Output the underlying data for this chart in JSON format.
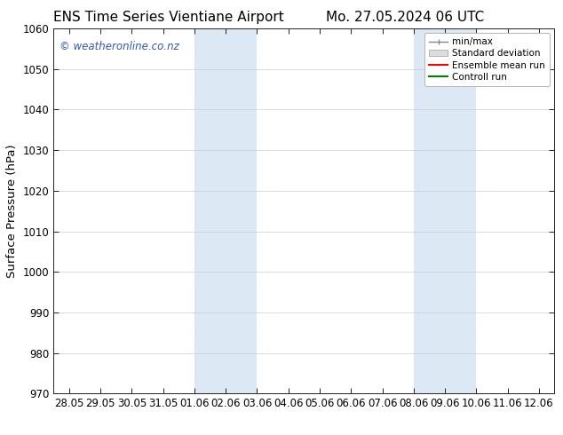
{
  "title_left": "ENS Time Series Vientiane Airport",
  "title_right": "Mo. 27.05.2024 06 UTC",
  "ylabel": "Surface Pressure (hPa)",
  "ylim": [
    970,
    1060
  ],
  "yticks": [
    970,
    980,
    990,
    1000,
    1010,
    1020,
    1030,
    1040,
    1050,
    1060
  ],
  "xtick_labels": [
    "28.05",
    "29.05",
    "30.05",
    "31.05",
    "01.06",
    "02.06",
    "03.06",
    "04.06",
    "05.06",
    "06.06",
    "07.06",
    "08.06",
    "09.06",
    "10.06",
    "11.06",
    "12.06"
  ],
  "xtick_positions": [
    0,
    1,
    2,
    3,
    4,
    5,
    6,
    7,
    8,
    9,
    10,
    11,
    12,
    13,
    14,
    15
  ],
  "xlim": [
    -0.5,
    15.5
  ],
  "shaded_regions": [
    {
      "x_start": 4,
      "x_end": 6,
      "color": "#dce9f5"
    },
    {
      "x_start": 11,
      "x_end": 13,
      "color": "#dce9f5"
    }
  ],
  "watermark_text": "© weatheronline.co.nz",
  "watermark_color": "#3355bb",
  "background_color": "#ffffff",
  "plot_bg_color": "#ffffff",
  "grid_color": "#cccccc",
  "legend_labels": [
    "min/max",
    "Standard deviation",
    "Ensemble mean run",
    "Controll run"
  ],
  "legend_colors": [
    "#aaaaaa",
    "#cccccc",
    "#ff0000",
    "#008000"
  ],
  "title_fontsize": 11,
  "tick_fontsize": 8.5,
  "ylabel_fontsize": 9.5
}
